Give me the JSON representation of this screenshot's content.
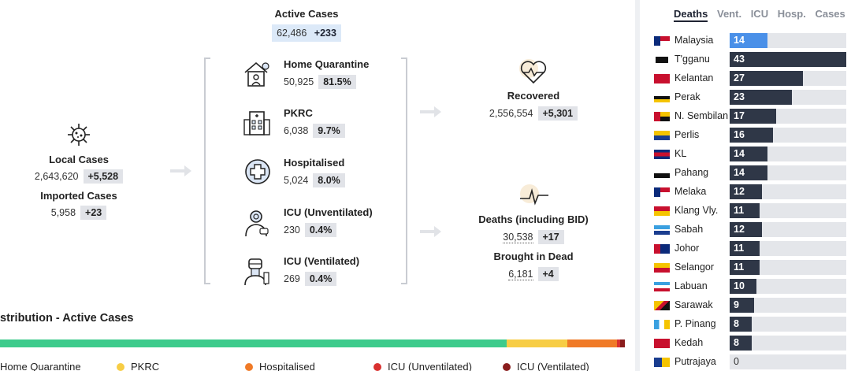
{
  "active": {
    "title": "Active Cases",
    "value": "62,486",
    "delta": "+233"
  },
  "local": {
    "title": "Local Cases",
    "value": "2,643,620",
    "delta": "+5,528"
  },
  "imported": {
    "title": "Imported Cases",
    "value": "5,958",
    "delta": "+23"
  },
  "categories": [
    {
      "title": "Home Quarantine",
      "value": "50,925",
      "pct": "81.5%",
      "icon": "house-quarantine-icon"
    },
    {
      "title": "PKRC",
      "value": "6,038",
      "pct": "9.7%",
      "icon": "building-icon"
    },
    {
      "title": "Hospitalised",
      "value": "5,024",
      "pct": "8.0%",
      "icon": "medical-cross-icon"
    },
    {
      "title": "ICU (Unventilated)",
      "value": "230",
      "pct": "0.4%",
      "icon": "patient-icon"
    },
    {
      "title": "ICU (Ventilated)",
      "value": "269",
      "pct": "0.4%",
      "icon": "ventilated-patient-icon"
    }
  ],
  "recovered": {
    "title": "Recovered",
    "value": "2,556,554",
    "delta": "+5,301"
  },
  "deaths": {
    "title": "Deaths (including BID)",
    "value": "30,538",
    "delta": "+17"
  },
  "bid": {
    "title": "Brought in Dead",
    "value": "6,181",
    "delta": "+4"
  },
  "tabs": [
    "Deaths",
    "Vent.",
    "ICU",
    "Hosp.",
    "Cases"
  ],
  "active_tab": "Deaths",
  "states": [
    {
      "name": "Malaysia",
      "value": 14,
      "highlight": true
    },
    {
      "name": "T'gganu",
      "value": 43
    },
    {
      "name": "Kelantan",
      "value": 27
    },
    {
      "name": "Perak",
      "value": 23
    },
    {
      "name": "N. Sembilan",
      "value": 17
    },
    {
      "name": "Perlis",
      "value": 16
    },
    {
      "name": "KL",
      "value": 14
    },
    {
      "name": "Pahang",
      "value": 14
    },
    {
      "name": "Melaka",
      "value": 12
    },
    {
      "name": "Klang Vly.",
      "value": 11
    },
    {
      "name": "Sabah",
      "value": 12
    },
    {
      "name": "Johor",
      "value": 11
    },
    {
      "name": "Selangor",
      "value": 11
    },
    {
      "name": "Labuan",
      "value": 10
    },
    {
      "name": "Sarawak",
      "value": 9
    },
    {
      "name": "P. Pinang",
      "value": 8
    },
    {
      "name": "Kedah",
      "value": 8
    },
    {
      "name": "Putrajaya",
      "value": 0
    }
  ],
  "distribution": {
    "title": "stribution - Active Cases",
    "legend": [
      "Home Quarantine",
      "PKRC",
      "Hospitalised",
      "ICU (Unventilated)",
      "ICU (Ventilated)"
    ]
  },
  "colors": {
    "home": "#3ecb8c",
    "pkrc": "#f7cd45",
    "hosp": "#f07a27",
    "icu_unvent": "#d9302f",
    "icu_vent": "#8a1d1d",
    "bar": "#2f3747",
    "highlight": "#4a90e8",
    "track": "#e4e6ea"
  }
}
